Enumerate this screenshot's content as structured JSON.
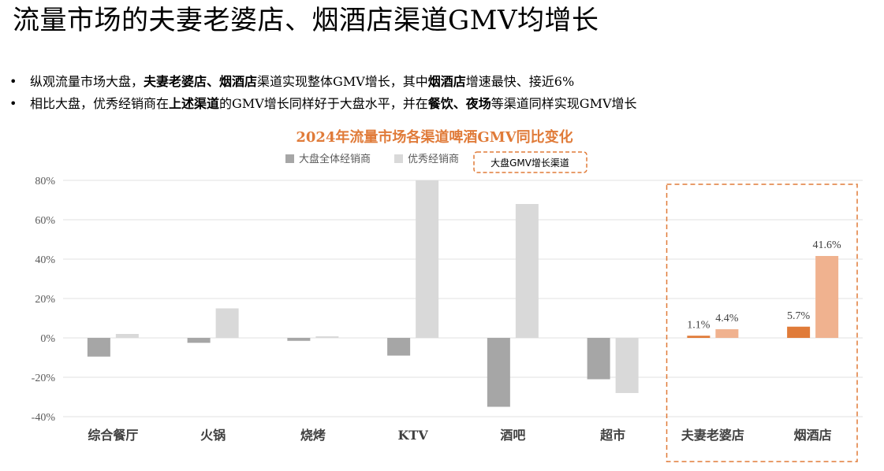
{
  "page": {
    "title": "流量市场的夫妻老婆店、烟酒店渠道GMV均增长",
    "bullets": [
      [
        {
          "t": "纵观流量市场大盘，",
          "b": false
        },
        {
          "t": "夫妻老婆店、烟酒店",
          "b": true
        },
        {
          "t": "渠道实现整体GMV增长，其中",
          "b": false
        },
        {
          "t": "烟酒店",
          "b": true
        },
        {
          "t": "增速最快、接近6%",
          "b": false
        }
      ],
      [
        {
          "t": "相比大盘，优秀经销商在",
          "b": false
        },
        {
          "t": "上述渠道",
          "b": true
        },
        {
          "t": "的GMV增长同样好于大盘水平，并在",
          "b": false
        },
        {
          "t": "餐饮、夜场",
          "b": true
        },
        {
          "t": "等渠道同样实现GMV增长",
          "b": false
        }
      ]
    ]
  },
  "chart_data": {
    "type": "bar",
    "title": "2024年流量市场各渠道啤酒GMV同比变化",
    "categories": [
      "综合餐厅",
      "火锅",
      "烧烤",
      "KTV",
      "酒吧",
      "超市",
      "夫妻老婆店",
      "烟酒店"
    ],
    "series": [
      {
        "name": "大盘全体经销商",
        "values": [
          -9.5,
          -2.5,
          -1.5,
          -9,
          -35,
          -21,
          1.1,
          5.7
        ]
      },
      {
        "name": "优秀经销商",
        "values": [
          2,
          15,
          0.8,
          80,
          68,
          -28,
          4.4,
          41.6
        ]
      }
    ],
    "data_labels": {
      "夫妻老婆店": [
        "1.1%",
        "4.4%"
      ],
      "烟酒店": [
        "5.7%",
        "41.6%"
      ]
    },
    "y_ticks": [
      "80%",
      "60%",
      "40%",
      "20%",
      "0%",
      "-20%",
      "-40%"
    ],
    "ylim": [
      -40,
      80
    ],
    "highlight_legend": "大盘GMV增长渠道",
    "highlight_categories": [
      "夫妻老婆店",
      "烟酒店"
    ],
    "colors": {
      "market": "#a6a6a6",
      "excellent": "#d9d9d9",
      "market_highlight": "#e07b39",
      "excellent_highlight": "#f0b28f",
      "title": "#e07b39",
      "highlight_border": "#e07b39",
      "grid": "#e0e0e0"
    }
  }
}
